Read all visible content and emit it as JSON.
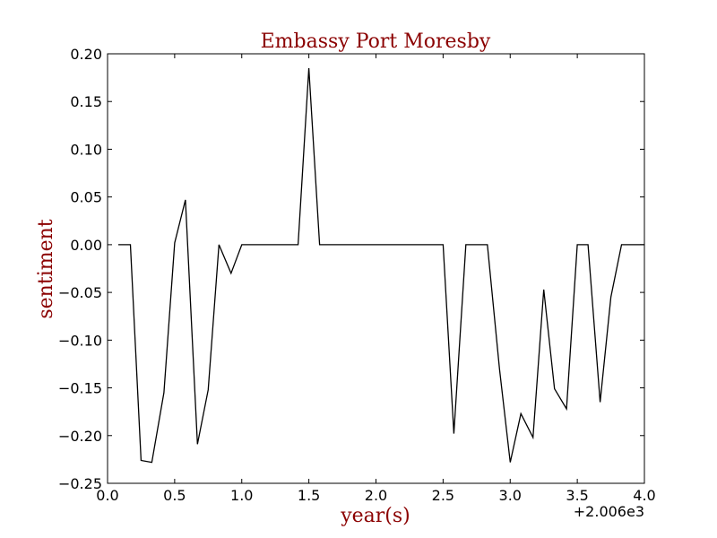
{
  "chart_data": {
    "type": "line",
    "title": "Embassy Port Moresby",
    "xlabel": "year(s)",
    "ylabel": "sentiment",
    "x_offset_label": "+2.006e3",
    "xlim": [
      0.0,
      4.0
    ],
    "ylim": [
      -0.25,
      0.2
    ],
    "x_ticks": [
      0.0,
      0.5,
      1.0,
      1.5,
      2.0,
      2.5,
      3.0,
      3.5,
      4.0
    ],
    "x_tick_labels": [
      "0.0",
      "0.5",
      "1.0",
      "1.5",
      "2.0",
      "2.5",
      "3.0",
      "3.5",
      "4.0"
    ],
    "y_ticks": [
      0.2,
      0.15,
      0.1,
      0.05,
      0.0,
      -0.05,
      -0.1,
      -0.15,
      -0.2,
      -0.25
    ],
    "y_tick_labels": [
      "0.20",
      "0.15",
      "0.10",
      "0.05",
      "0.00",
      "−0.05",
      "−0.10",
      "−0.15",
      "−0.20",
      "−0.25"
    ],
    "grid": false,
    "line_color": "#000000",
    "text_color": "#8b0000",
    "series": [
      {
        "x": [
          0.08,
          0.17,
          0.25,
          0.33,
          0.42,
          0.5,
          0.58,
          0.67,
          0.75,
          0.83,
          0.92,
          1.0,
          1.08,
          1.17,
          1.25,
          1.33,
          1.42,
          1.5,
          1.58,
          1.67,
          1.75,
          1.83,
          1.92,
          2.0,
          2.08,
          2.17,
          2.25,
          2.33,
          2.42,
          2.5,
          2.58,
          2.67,
          2.75,
          2.83,
          2.92,
          3.0,
          3.08,
          3.17,
          3.25,
          3.33,
          3.42,
          3.5,
          3.58,
          3.67,
          3.75,
          3.83,
          3.92,
          4.0
        ],
        "y": [
          0.0,
          0.0,
          -0.226,
          -0.228,
          -0.155,
          0.002,
          0.047,
          -0.209,
          -0.152,
          0.0,
          -0.03,
          0.0,
          0.0,
          0.0,
          0.0,
          0.0,
          0.0,
          0.185,
          0.0,
          0.0,
          0.0,
          0.0,
          0.0,
          0.0,
          0.0,
          0.0,
          0.0,
          0.0,
          0.0,
          0.0,
          -0.198,
          0.0,
          0.0,
          0.0,
          -0.13,
          -0.228,
          -0.177,
          -0.202,
          -0.047,
          -0.151,
          -0.172,
          0.0,
          0.0,
          -0.165,
          -0.055,
          0.0,
          0.0,
          0.0
        ]
      }
    ]
  }
}
